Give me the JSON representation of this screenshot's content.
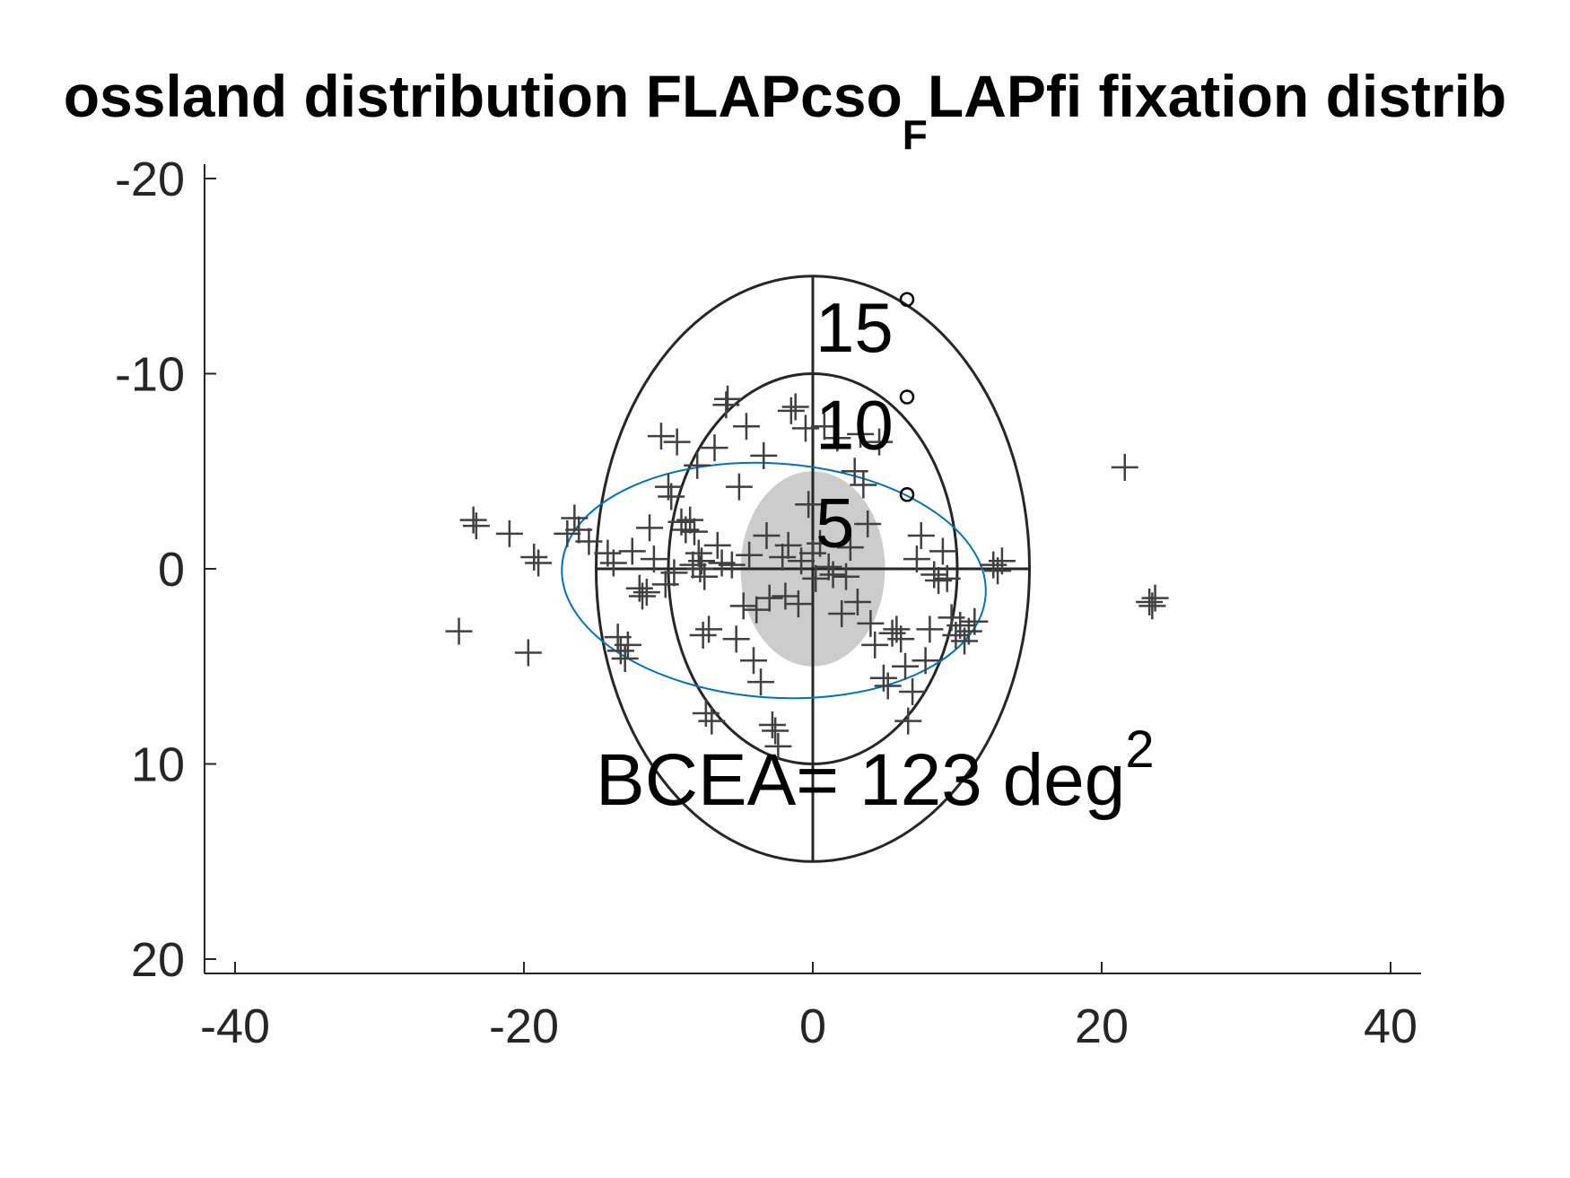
{
  "chart_data": {
    "type": "scatter",
    "title": {
      "pre": "ossland distribution FLAPcso",
      "sub": "F",
      "post": "LAPfi fixation distrib"
    },
    "xlabel": "",
    "ylabel": "",
    "xlim": [
      -42,
      42
    ],
    "ylim": [
      -20.5,
      20.5
    ],
    "y_reversed": true,
    "x_ticks": [
      -40,
      -20,
      0,
      20,
      40
    ],
    "y_ticks": [
      -20,
      -10,
      0,
      10,
      20
    ],
    "grid": false,
    "polar_rings": [
      {
        "label": "5",
        "radius": 5,
        "filled": true,
        "fill": "#cccccc"
      },
      {
        "label": "10",
        "radius": 10,
        "filled": false
      },
      {
        "label": "15",
        "radius": 15,
        "filled": false
      }
    ],
    "degree_symbol": "°",
    "bcea": {
      "label": "BCEA= 123 deg",
      "sup": "2",
      "ellipse": {
        "cx": -2.7,
        "cy": 0.6,
        "rx": 14.7,
        "ry": 6.0,
        "angle": 4,
        "color": "#0072bd"
      }
    },
    "marker": {
      "symbol": "+",
      "color": "#404040"
    },
    "points": [
      [
        -24.5,
        3.2
      ],
      [
        -23.5,
        -2.5
      ],
      [
        -23.3,
        -2.2
      ],
      [
        -21,
        -1.8
      ],
      [
        -19.7,
        4.3
      ],
      [
        -19.3,
        -0.6
      ],
      [
        -19.0,
        -0.3
      ],
      [
        -17,
        -1.8
      ],
      [
        -16.5,
        -2.6
      ],
      [
        -16.2,
        -2.0
      ],
      [
        -15.5,
        -1.4
      ],
      [
        -14.2,
        -0.8
      ],
      [
        -13.8,
        -0.3
      ],
      [
        -13.5,
        3.5
      ],
      [
        -13.3,
        4.2
      ],
      [
        -13.0,
        4.6
      ],
      [
        -12.8,
        3.9
      ],
      [
        -12.5,
        -0.9
      ],
      [
        -12.0,
        1.0
      ],
      [
        -11.5,
        1.2
      ],
      [
        -11.3,
        -2.1
      ],
      [
        -11.0,
        -0.5
      ],
      [
        -10.5,
        -6.8
      ],
      [
        -10.0,
        -4.2
      ],
      [
        -9.8,
        -3.7
      ],
      [
        -9.6,
        0.2
      ],
      [
        -9.4,
        -6.5
      ],
      [
        -9.1,
        -2.4
      ],
      [
        -8.8,
        -2.0
      ],
      [
        -8.5,
        -2.5
      ],
      [
        -8.2,
        -1.9
      ],
      [
        -8.0,
        -5.3
      ],
      [
        -7.9,
        -0.8
      ],
      [
        -7.7,
        -0.4
      ],
      [
        -7.6,
        3.4
      ],
      [
        -7.4,
        7.4
      ],
      [
        -7.2,
        3.1
      ],
      [
        -7.0,
        7.8
      ],
      [
        -6.8,
        -6.2
      ],
      [
        -6.6,
        -1.2
      ],
      [
        -6.3,
        -0.3
      ],
      [
        -6.0,
        -8.4
      ],
      [
        -5.9,
        -8.7
      ],
      [
        -5.6,
        -0.2
      ],
      [
        -5.3,
        3.6
      ],
      [
        -5.1,
        -4.2
      ],
      [
        -4.8,
        1.9
      ],
      [
        -4.6,
        -7.3
      ],
      [
        -4.4,
        -0.7
      ],
      [
        -4.1,
        4.7
      ],
      [
        -3.9,
        2.1
      ],
      [
        -3.6,
        5.8
      ],
      [
        -3.4,
        -5.8
      ],
      [
        -3.2,
        -1.7
      ],
      [
        -3.0,
        1.5
      ],
      [
        -2.8,
        8.0
      ],
      [
        -2.6,
        8.3
      ],
      [
        -2.4,
        9.1
      ],
      [
        -2.1,
        -0.6
      ],
      [
        -1.9,
        1.4
      ],
      [
        -1.7,
        -1.2
      ],
      [
        -1.5,
        -8.1
      ],
      [
        -1.2,
        -8.3
      ],
      [
        -1.0,
        1.8
      ],
      [
        -0.8,
        -0.4
      ],
      [
        -0.5,
        -7.2
      ],
      [
        -0.3,
        -3.3
      ],
      [
        0.0,
        -0.8
      ],
      [
        0.2,
        0.5
      ],
      [
        0.5,
        -1.3
      ],
      [
        0.8,
        -7.3
      ],
      [
        1.1,
        -0.1
      ],
      [
        1.4,
        0.3
      ],
      [
        1.7,
        -6.7
      ],
      [
        2.0,
        2.3
      ],
      [
        2.3,
        0.4
      ],
      [
        2.6,
        -1.1
      ],
      [
        2.9,
        -5.0
      ],
      [
        3.1,
        1.7
      ],
      [
        3.3,
        -6.9
      ],
      [
        3.5,
        -4.3
      ],
      [
        3.8,
        -2.3
      ],
      [
        4.0,
        2.8
      ],
      [
        4.3,
        3.9
      ],
      [
        4.6,
        -6.5
      ],
      [
        4.9,
        5.6
      ],
      [
        5.2,
        6.0
      ],
      [
        5.5,
        3.3
      ],
      [
        5.8,
        3.1
      ],
      [
        6.1,
        3.6
      ],
      [
        6.4,
        5.0
      ],
      [
        6.6,
        7.8
      ],
      [
        6.9,
        6.3
      ],
      [
        7.2,
        -0.5
      ],
      [
        7.5,
        -1.7
      ],
      [
        7.8,
        4.7
      ],
      [
        8.1,
        3.1
      ],
      [
        8.4,
        0.3
      ],
      [
        8.7,
        0.6
      ],
      [
        9.0,
        -0.9
      ],
      [
        9.3,
        0.5
      ],
      [
        9.6,
        2.5
      ],
      [
        9.9,
        3.4
      ],
      [
        10.2,
        2.9
      ],
      [
        10.5,
        3.7
      ],
      [
        10.8,
        3.2
      ],
      [
        11.2,
        2.7
      ],
      [
        12.5,
        -0.2
      ],
      [
        12.8,
        0.1
      ],
      [
        13.1,
        -0.4
      ],
      [
        21.6,
        -5.2
      ],
      [
        23.3,
        1.7
      ],
      [
        23.5,
        1.9
      ],
      [
        23.7,
        1.5
      ],
      [
        -7.8,
        0.0
      ],
      [
        -7.5,
        0.4
      ],
      [
        -8.3,
        -0.2
      ],
      [
        -11.8,
        1.4
      ],
      [
        -10.2,
        0.8
      ]
    ]
  }
}
